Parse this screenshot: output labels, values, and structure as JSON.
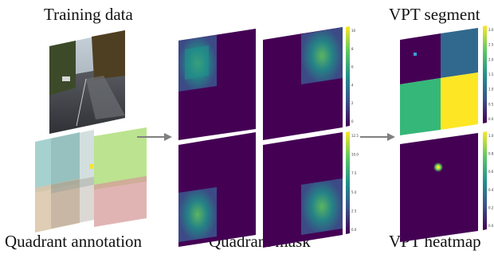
{
  "labels": {
    "training_data": "Training data",
    "quadrant_annotation": "Quadrant annotation",
    "quadrant_mask": "Quadrant mask",
    "vpt_segment": "VPT segment",
    "vpt_heatmap": "VPT heatmap"
  },
  "colorbars": {
    "mask_top_ticks": [
      "10",
      "8",
      "6",
      "4",
      "2",
      "0"
    ],
    "mask_bottom_ticks": [
      "12.5",
      "10.0",
      "7.5",
      "5.0",
      "2.5",
      "0.0"
    ],
    "segment_ticks": [
      "3.0",
      "2.5",
      "2.0",
      "1.5",
      "1.0",
      "0.5",
      "0.0"
    ],
    "heatmap_ticks": [
      "1.0",
      "0.8",
      "0.6",
      "0.4",
      "0.2",
      "0.0"
    ]
  },
  "colors": {
    "viridis_dark": "#440154",
    "viridis_teal": "#21918c",
    "viridis_green": "#5ec962",
    "viridis_yellow": "#fde725",
    "segment_blue": "#31688e",
    "segment_green": "#35b779",
    "quadrant_teal": "#8fc7c3",
    "quadrant_green": "#a6d96a",
    "quadrant_tan": "#d9c4a8",
    "quadrant_pink": "#d79b9b",
    "arrow": "#808080"
  }
}
